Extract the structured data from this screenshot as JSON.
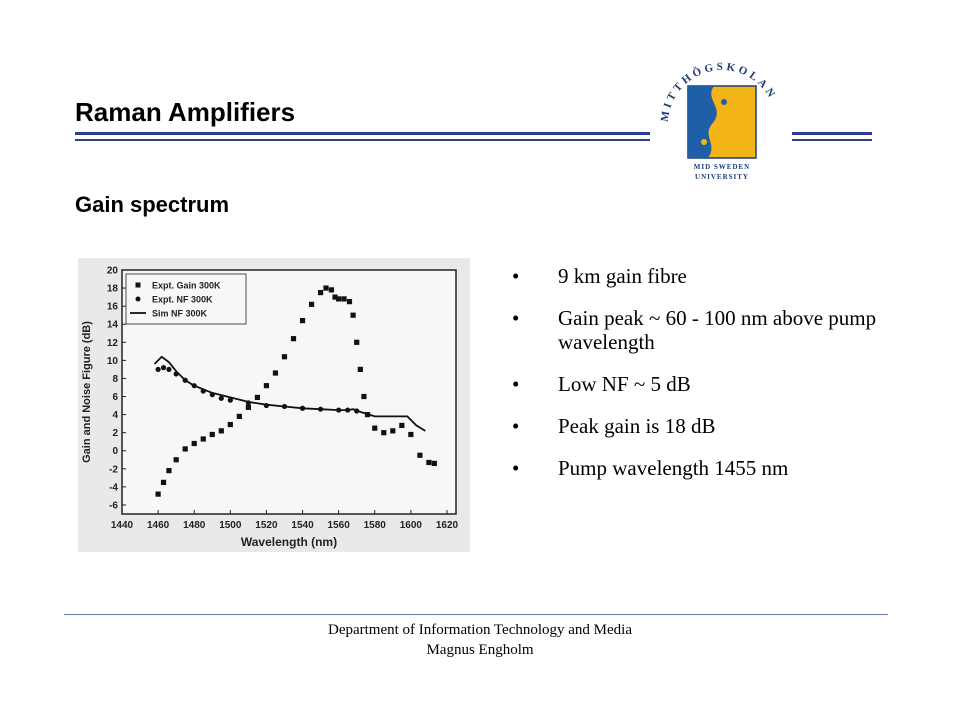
{
  "slide": {
    "title": "Raman Amplifiers",
    "subtitle": "Gain spectrum",
    "bullets": [
      {
        "symbol": "•",
        "text": "9 km gain fibre"
      },
      {
        "symbol": "•",
        "text": "Gain peak ~ 60 - 100 nm above pump wavelength"
      },
      {
        "symbol": "•",
        "text": "Low NF ~ 5 dB"
      },
      {
        "symbol": "•",
        "text": "Peak gain is 18 dB"
      },
      {
        "symbol": "•",
        "text": "Pump wavelength 1455 nm"
      }
    ],
    "footer": {
      "line1": "Department of Information Technology and Media",
      "line2": "Magnus Engholm"
    },
    "colors": {
      "accent_rule": "#2a3f8f",
      "logo_blue": "#1f5fa8",
      "logo_yellow": "#f2b416",
      "logo_text": "#1a3c7a"
    }
  },
  "logo": {
    "arc_text": "MITTHÖGSKOLAN",
    "line1": "MID SWEDEN",
    "line2": "UNIVERSITY"
  },
  "chart_data": {
    "type": "scatter",
    "xlabel": "Wavelength (nm)",
    "ylabel": "Gain and Noise Figure (dB)",
    "xlim": [
      1440,
      1625
    ],
    "ylim": [
      -7,
      20
    ],
    "xticks": [
      1440,
      1460,
      1480,
      1500,
      1520,
      1540,
      1560,
      1580,
      1600,
      1620
    ],
    "yticks": [
      -6,
      -4,
      -2,
      0,
      2,
      4,
      6,
      8,
      10,
      12,
      14,
      16,
      18,
      20
    ],
    "legend_position": "top-left",
    "series": [
      {
        "name": "Expt. Gain 300K",
        "marker": "square",
        "x": [
          1460,
          1463,
          1466,
          1470,
          1475,
          1480,
          1485,
          1490,
          1495,
          1500,
          1505,
          1510,
          1515,
          1520,
          1525,
          1530,
          1535,
          1540,
          1545,
          1550,
          1553,
          1556,
          1558,
          1560,
          1563,
          1566,
          1568,
          1570,
          1572,
          1574,
          1576,
          1580,
          1585,
          1590,
          1595,
          1600,
          1605,
          1610,
          1613
        ],
        "y": [
          -4.8,
          -3.5,
          -2.2,
          -1.0,
          0.2,
          0.8,
          1.3,
          1.8,
          2.2,
          2.9,
          3.8,
          4.8,
          5.9,
          7.2,
          8.6,
          10.4,
          12.4,
          14.4,
          16.2,
          17.5,
          18.0,
          17.8,
          17.0,
          16.8,
          16.8,
          16.5,
          15.0,
          12.0,
          9.0,
          6.0,
          4.0,
          2.5,
          2.0,
          2.2,
          2.8,
          1.8,
          -0.5,
          -1.3,
          -1.4
        ]
      },
      {
        "name": "Expt. NF 300K",
        "marker": "circle",
        "x": [
          1460,
          1463,
          1466,
          1470,
          1475,
          1480,
          1485,
          1490,
          1495,
          1500,
          1510,
          1520,
          1530,
          1540,
          1550,
          1560,
          1565,
          1570
        ],
        "y": [
          9.0,
          9.2,
          9.0,
          8.5,
          7.8,
          7.2,
          6.6,
          6.2,
          5.8,
          5.6,
          5.3,
          5.0,
          4.9,
          4.7,
          4.6,
          4.5,
          4.5,
          4.4
        ]
      },
      {
        "name": "Sim NF 300K",
        "marker": "line",
        "x": [
          1458,
          1462,
          1466,
          1470,
          1475,
          1480,
          1490,
          1500,
          1510,
          1520,
          1530,
          1540,
          1550,
          1560,
          1565,
          1568,
          1572,
          1580,
          1590,
          1598,
          1603,
          1608
        ],
        "y": [
          9.6,
          10.4,
          9.8,
          8.8,
          7.8,
          7.2,
          6.4,
          5.9,
          5.4,
          5.1,
          4.9,
          4.7,
          4.6,
          4.5,
          4.5,
          4.6,
          4.3,
          3.8,
          3.8,
          3.8,
          2.8,
          2.2
        ]
      }
    ]
  }
}
